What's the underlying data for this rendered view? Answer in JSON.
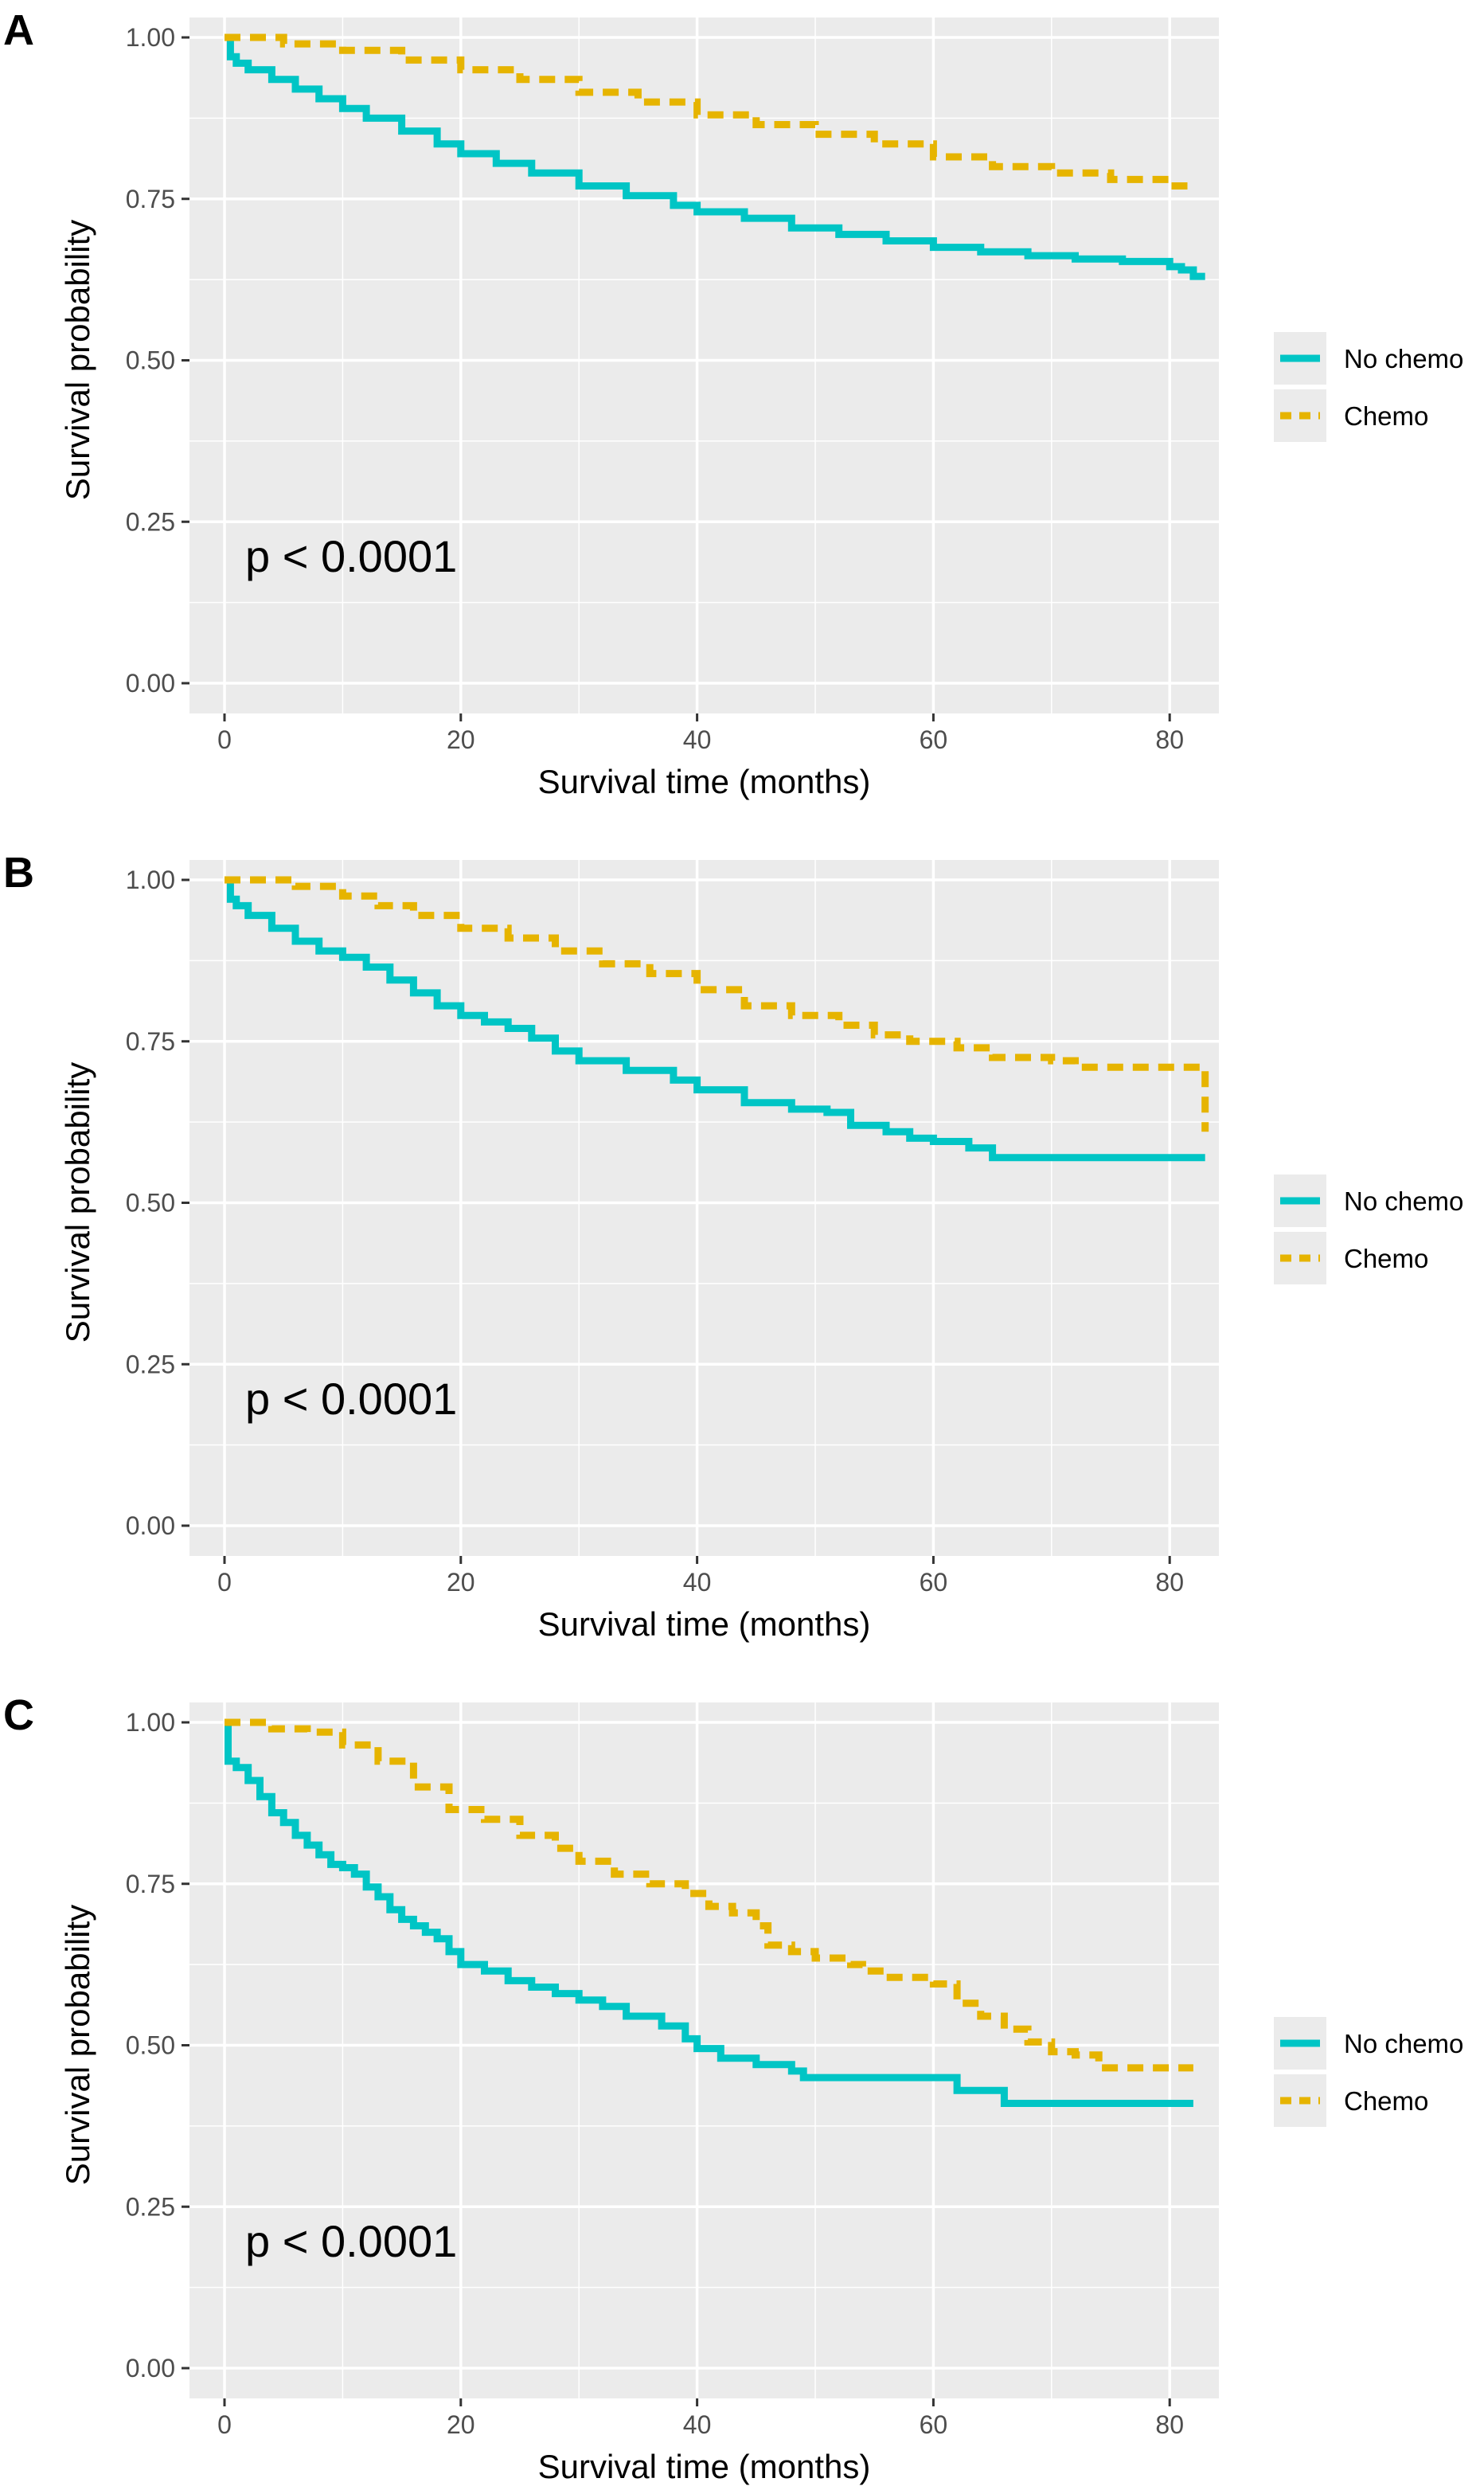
{
  "chart_data": [
    {
      "type": "line",
      "panel": "A",
      "xlabel": "Survival time (months)",
      "ylabel": "Survival probability",
      "xlim": [
        0,
        83
      ],
      "ylim": [
        0,
        1
      ],
      "xticks": [
        0,
        20,
        40,
        60,
        80
      ],
      "xtick_labels": [
        "0",
        "20",
        "40",
        "60",
        "80"
      ],
      "yticks": [
        0,
        0.25,
        0.5,
        0.75,
        1.0
      ],
      "ytick_labels": [
        "0.00",
        "0.25",
        "0.50",
        "0.75",
        "1.00"
      ],
      "grid": true,
      "annotation": "p < 0.0001",
      "legend_position": "right",
      "series": [
        {
          "name": "No chemo",
          "color": "#00c5c5",
          "dash": "solid",
          "points": [
            [
              0,
              1.0
            ],
            [
              0.5,
              0.97
            ],
            [
              1,
              0.96
            ],
            [
              2,
              0.95
            ],
            [
              4,
              0.935
            ],
            [
              6,
              0.92
            ],
            [
              8,
              0.905
            ],
            [
              10,
              0.89
            ],
            [
              12,
              0.875
            ],
            [
              15,
              0.855
            ],
            [
              18,
              0.835
            ],
            [
              20,
              0.82
            ],
            [
              23,
              0.805
            ],
            [
              26,
              0.79
            ],
            [
              30,
              0.77
            ],
            [
              34,
              0.755
            ],
            [
              38,
              0.74
            ],
            [
              40,
              0.73
            ],
            [
              44,
              0.72
            ],
            [
              48,
              0.705
            ],
            [
              52,
              0.695
            ],
            [
              56,
              0.685
            ],
            [
              60,
              0.675
            ],
            [
              64,
              0.668
            ],
            [
              68,
              0.662
            ],
            [
              72,
              0.657
            ],
            [
              76,
              0.653
            ],
            [
              80,
              0.645
            ],
            [
              81,
              0.64
            ],
            [
              82,
              0.63
            ],
            [
              83,
              0.63
            ]
          ]
        },
        {
          "name": "Chemo",
          "color": "#e6b400",
          "dash": "dashed",
          "points": [
            [
              0,
              1.0
            ],
            [
              2,
              1.0
            ],
            [
              5,
              0.99
            ],
            [
              10,
              0.98
            ],
            [
              15,
              0.965
            ],
            [
              20,
              0.95
            ],
            [
              25,
              0.935
            ],
            [
              30,
              0.915
            ],
            [
              35,
              0.9
            ],
            [
              40,
              0.88
            ],
            [
              45,
              0.865
            ],
            [
              50,
              0.85
            ],
            [
              55,
              0.835
            ],
            [
              60,
              0.815
            ],
            [
              65,
              0.8
            ],
            [
              70,
              0.79
            ],
            [
              75,
              0.78
            ],
            [
              80,
              0.77
            ],
            [
              82,
              0.77
            ]
          ]
        }
      ]
    },
    {
      "type": "line",
      "panel": "B",
      "xlabel": "Survival time (months)",
      "ylabel": "Survival probability",
      "xlim": [
        0,
        83
      ],
      "ylim": [
        0,
        1
      ],
      "xticks": [
        0,
        20,
        40,
        60,
        80
      ],
      "xtick_labels": [
        "0",
        "20",
        "40",
        "60",
        "80"
      ],
      "yticks": [
        0,
        0.25,
        0.5,
        0.75,
        1.0
      ],
      "ytick_labels": [
        "0.00",
        "0.25",
        "0.50",
        "0.75",
        "1.00"
      ],
      "grid": true,
      "annotation": "p < 0.0001",
      "legend_position": "right",
      "series": [
        {
          "name": "No chemo",
          "color": "#00c5c5",
          "dash": "solid",
          "points": [
            [
              0,
              1.0
            ],
            [
              0.5,
              0.97
            ],
            [
              1,
              0.96
            ],
            [
              2,
              0.945
            ],
            [
              4,
              0.925
            ],
            [
              6,
              0.905
            ],
            [
              8,
              0.89
            ],
            [
              10,
              0.88
            ],
            [
              12,
              0.865
            ],
            [
              14,
              0.845
            ],
            [
              16,
              0.825
            ],
            [
              18,
              0.805
            ],
            [
              20,
              0.79
            ],
            [
              22,
              0.78
            ],
            [
              24,
              0.77
            ],
            [
              26,
              0.755
            ],
            [
              28,
              0.735
            ],
            [
              30,
              0.72
            ],
            [
              34,
              0.705
            ],
            [
              38,
              0.69
            ],
            [
              40,
              0.675
            ],
            [
              44,
              0.655
            ],
            [
              48,
              0.645
            ],
            [
              51,
              0.64
            ],
            [
              53,
              0.62
            ],
            [
              56,
              0.61
            ],
            [
              58,
              0.6
            ],
            [
              60,
              0.595
            ],
            [
              63,
              0.585
            ],
            [
              65,
              0.57
            ],
            [
              70,
              0.57
            ],
            [
              75,
              0.57
            ],
            [
              80,
              0.57
            ],
            [
              83,
              0.57
            ]
          ]
        },
        {
          "name": "Chemo",
          "color": "#e6b400",
          "dash": "dashed",
          "points": [
            [
              0,
              1.0
            ],
            [
              3,
              1.0
            ],
            [
              6,
              0.99
            ],
            [
              10,
              0.975
            ],
            [
              13,
              0.96
            ],
            [
              16,
              0.945
            ],
            [
              20,
              0.925
            ],
            [
              24,
              0.91
            ],
            [
              28,
              0.89
            ],
            [
              32,
              0.87
            ],
            [
              36,
              0.855
            ],
            [
              40,
              0.83
            ],
            [
              44,
              0.805
            ],
            [
              48,
              0.79
            ],
            [
              52,
              0.775
            ],
            [
              55,
              0.76
            ],
            [
              58,
              0.75
            ],
            [
              62,
              0.74
            ],
            [
              65,
              0.725
            ],
            [
              70,
              0.72
            ],
            [
              72,
              0.71
            ],
            [
              80,
              0.71
            ],
            [
              83,
              0.71
            ],
            [
              83,
              0.61
            ]
          ]
        }
      ]
    },
    {
      "type": "line",
      "panel": "C",
      "xlabel": "Survival time (months)",
      "ylabel": "Survival probability",
      "xlim": [
        0,
        83
      ],
      "ylim": [
        0,
        1
      ],
      "xticks": [
        0,
        20,
        40,
        60,
        80
      ],
      "xtick_labels": [
        "0",
        "20",
        "40",
        "60",
        "80"
      ],
      "yticks": [
        0,
        0.25,
        0.5,
        0.75,
        1.0
      ],
      "ytick_labels": [
        "0.00",
        "0.25",
        "0.50",
        "0.75",
        "1.00"
      ],
      "grid": true,
      "annotation": "p < 0.0001",
      "legend_position": "right",
      "series": [
        {
          "name": "No chemo",
          "color": "#00c5c5",
          "dash": "solid",
          "points": [
            [
              0,
              1.0
            ],
            [
              0.3,
              0.94
            ],
            [
              1,
              0.93
            ],
            [
              2,
              0.91
            ],
            [
              3,
              0.885
            ],
            [
              4,
              0.86
            ],
            [
              5,
              0.845
            ],
            [
              6,
              0.825
            ],
            [
              7,
              0.81
            ],
            [
              8,
              0.795
            ],
            [
              9,
              0.78
            ],
            [
              10,
              0.775
            ],
            [
              11,
              0.765
            ],
            [
              12,
              0.745
            ],
            [
              13,
              0.73
            ],
            [
              14,
              0.71
            ],
            [
              15,
              0.695
            ],
            [
              16,
              0.685
            ],
            [
              17,
              0.675
            ],
            [
              18,
              0.665
            ],
            [
              19,
              0.645
            ],
            [
              20,
              0.625
            ],
            [
              22,
              0.615
            ],
            [
              24,
              0.6
            ],
            [
              26,
              0.59
            ],
            [
              28,
              0.58
            ],
            [
              30,
              0.57
            ],
            [
              32,
              0.56
            ],
            [
              34,
              0.545
            ],
            [
              37,
              0.53
            ],
            [
              39,
              0.51
            ],
            [
              40,
              0.495
            ],
            [
              42,
              0.48
            ],
            [
              45,
              0.47
            ],
            [
              48,
              0.46
            ],
            [
              49,
              0.45
            ],
            [
              55,
              0.45
            ],
            [
              60,
              0.45
            ],
            [
              62,
              0.43
            ],
            [
              66,
              0.41
            ],
            [
              70,
              0.41
            ],
            [
              75,
              0.41
            ],
            [
              80,
              0.41
            ],
            [
              82,
              0.41
            ]
          ]
        },
        {
          "name": "Chemo",
          "color": "#e6b400",
          "dash": "dashed",
          "points": [
            [
              0,
              1.0
            ],
            [
              2,
              1.0
            ],
            [
              4,
              0.99
            ],
            [
              7,
              0.985
            ],
            [
              10,
              0.965
            ],
            [
              13,
              0.94
            ],
            [
              16,
              0.9
            ],
            [
              19,
              0.865
            ],
            [
              22,
              0.85
            ],
            [
              25,
              0.825
            ],
            [
              28,
              0.805
            ],
            [
              30,
              0.785
            ],
            [
              33,
              0.765
            ],
            [
              36,
              0.75
            ],
            [
              39,
              0.735
            ],
            [
              41,
              0.715
            ],
            [
              43,
              0.705
            ],
            [
              45,
              0.685
            ],
            [
              46,
              0.655
            ],
            [
              48,
              0.645
            ],
            [
              50,
              0.635
            ],
            [
              53,
              0.625
            ],
            [
              54,
              0.615
            ],
            [
              56,
              0.605
            ],
            [
              60,
              0.595
            ],
            [
              62,
              0.565
            ],
            [
              64,
              0.545
            ],
            [
              66,
              0.525
            ],
            [
              68,
              0.505
            ],
            [
              70,
              0.49
            ],
            [
              72,
              0.485
            ],
            [
              74,
              0.465
            ],
            [
              78,
              0.465
            ],
            [
              82,
              0.465
            ]
          ]
        }
      ]
    }
  ]
}
